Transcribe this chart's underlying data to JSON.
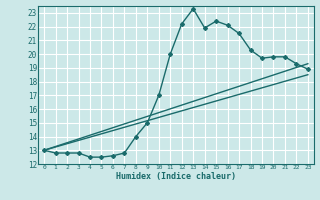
{
  "xlabel": "Humidex (Indice chaleur)",
  "background_color": "#cce8e8",
  "grid_color": "#ffffff",
  "line_color": "#1a6b6b",
  "xlim": [
    -0.5,
    23.5
  ],
  "ylim": [
    12,
    23.5
  ],
  "yticks": [
    12,
    13,
    14,
    15,
    16,
    17,
    18,
    19,
    20,
    21,
    22,
    23
  ],
  "xticks": [
    0,
    1,
    2,
    3,
    4,
    5,
    6,
    7,
    8,
    9,
    10,
    11,
    12,
    13,
    14,
    15,
    16,
    17,
    18,
    19,
    20,
    21,
    22,
    23
  ],
  "curve1_x": [
    0,
    1,
    2,
    3,
    4,
    5,
    6,
    7,
    8,
    9,
    10,
    11,
    12,
    13,
    14,
    15,
    16,
    17,
    18,
    19,
    20,
    21,
    22,
    23
  ],
  "curve1_y": [
    13.0,
    12.8,
    12.8,
    12.8,
    12.5,
    12.5,
    12.6,
    12.8,
    14.0,
    15.0,
    17.0,
    20.0,
    22.2,
    23.3,
    21.9,
    22.4,
    22.1,
    21.5,
    20.3,
    19.7,
    19.8,
    19.8,
    19.3,
    18.9
  ],
  "curve2_x": [
    0,
    23
  ],
  "curve2_y": [
    13.0,
    18.5
  ],
  "curve3_x": [
    0,
    23
  ],
  "curve3_y": [
    13.0,
    19.3
  ]
}
